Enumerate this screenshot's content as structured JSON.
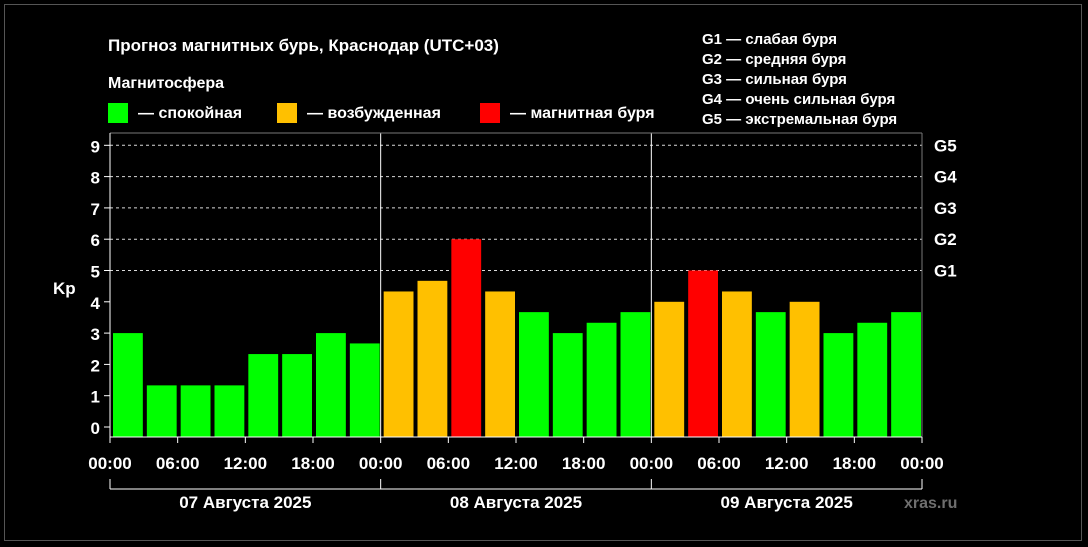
{
  "chart_data": {
    "type": "bar",
    "title": "Прогноз магнитных бурь, Краснодар (UTC+03)",
    "ylabel": "Kp",
    "ylim": [
      0,
      9.3
    ],
    "yticks": [
      "0",
      "1",
      "2",
      "3",
      "4",
      "5",
      "6",
      "7",
      "8",
      "9"
    ],
    "gscale": [
      {
        "label": "G1",
        "kp": 5
      },
      {
        "label": "G2",
        "kp": 6
      },
      {
        "label": "G3",
        "kp": 7
      },
      {
        "label": "G4",
        "kp": 8
      },
      {
        "label": "G5",
        "kp": 9
      }
    ],
    "gscale_legend": [
      "G1 — слабая буря",
      "G2 — средняя буря",
      "G3 — сильная буря",
      "G4 — очень сильная буря",
      "G5 — экстремальная буря"
    ],
    "legend": {
      "title": "Магнитосфера",
      "items": [
        {
          "label": "— спокойная",
          "color": "#00ff00"
        },
        {
          "label": "— возбужденная",
          "color": "#ffc000"
        },
        {
          "label": "— магнитная буря",
          "color": "#ff0000"
        }
      ]
    },
    "xticks": [
      "00:00",
      "06:00",
      "12:00",
      "18:00",
      "00:00",
      "06:00",
      "12:00",
      "18:00",
      "00:00",
      "06:00",
      "12:00",
      "18:00",
      "00:00"
    ],
    "days": [
      "07 Августа 2025",
      "08 Августа 2025",
      "09 Августа 2025"
    ],
    "values": [
      3.0,
      1.33,
      1.33,
      1.33,
      2.33,
      2.33,
      3.0,
      2.67,
      4.33,
      4.67,
      6.0,
      4.33,
      3.67,
      3.0,
      3.33,
      3.67,
      4.0,
      5.0,
      4.33,
      3.67,
      4.0,
      3.0,
      3.33,
      3.67
    ],
    "colors": {
      "quiet": "#00ff00",
      "active": "#ffc000",
      "storm": "#ff0000"
    },
    "grid": true
  },
  "watermark": "xras.ru"
}
